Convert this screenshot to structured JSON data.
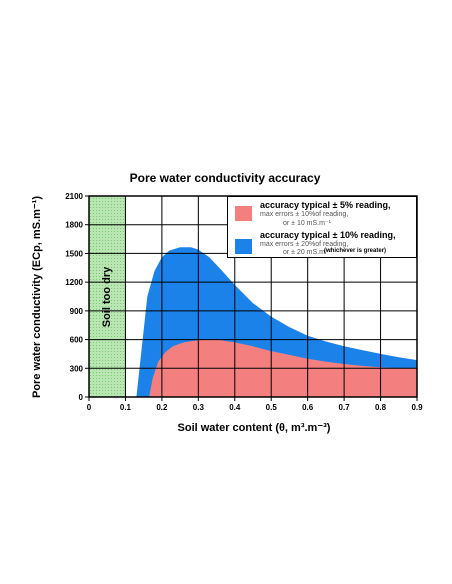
{
  "chart_data": {
    "type": "area",
    "title": "Pore water conductivity accuracy",
    "xlabel": "Soil water content (θ, m³.m⁻³)",
    "ylabel": "Pore water conductivity (ECp, mS.m⁻¹)",
    "xlim": [
      0,
      0.9
    ],
    "ylim": [
      0,
      2100
    ],
    "x_ticks": [
      "0",
      "0.1",
      "0.2",
      "0.3",
      "0.4",
      "0.5",
      "0.6",
      "0.7",
      "0.8",
      "0.9"
    ],
    "y_ticks": [
      "0",
      "300",
      "600",
      "900",
      "1200",
      "1500",
      "1800",
      "2100"
    ],
    "grid": true,
    "shaded_region": {
      "label": "Soil too dry",
      "x_range": [
        0,
        0.1
      ],
      "color": "#9fd89a"
    },
    "series": [
      {
        "name": "accuracy typical ± 10% reading",
        "color": "#1a82e8",
        "points": [
          [
            0.12,
            0
          ],
          [
            0.13,
            0
          ],
          [
            0.15,
            700
          ],
          [
            0.16,
            1050
          ],
          [
            0.18,
            1320
          ],
          [
            0.2,
            1460
          ],
          [
            0.22,
            1530
          ],
          [
            0.25,
            1565
          ],
          [
            0.28,
            1565
          ],
          [
            0.3,
            1540
          ],
          [
            0.33,
            1460
          ],
          [
            0.36,
            1340
          ],
          [
            0.4,
            1170
          ],
          [
            0.45,
            980
          ],
          [
            0.5,
            840
          ],
          [
            0.55,
            730
          ],
          [
            0.6,
            640
          ],
          [
            0.65,
            580
          ],
          [
            0.7,
            530
          ],
          [
            0.75,
            490
          ],
          [
            0.8,
            450
          ],
          [
            0.85,
            415
          ],
          [
            0.9,
            385
          ]
        ]
      },
      {
        "name": "accuracy typical ± 5% reading",
        "color": "#f47f7f",
        "points": [
          [
            0.165,
            0
          ],
          [
            0.175,
            200
          ],
          [
            0.19,
            370
          ],
          [
            0.21,
            470
          ],
          [
            0.23,
            530
          ],
          [
            0.26,
            570
          ],
          [
            0.3,
            595
          ],
          [
            0.33,
            600
          ],
          [
            0.36,
            595
          ],
          [
            0.4,
            570
          ],
          [
            0.45,
            530
          ],
          [
            0.5,
            480
          ],
          [
            0.55,
            440
          ],
          [
            0.6,
            400
          ],
          [
            0.65,
            370
          ],
          [
            0.7,
            345
          ],
          [
            0.75,
            325
          ],
          [
            0.8,
            310
          ],
          [
            0.85,
            302
          ],
          [
            0.9,
            300
          ]
        ]
      }
    ],
    "legend": {
      "placement": "top-right",
      "items": [
        {
          "title": "accuracy typical ± 5% reading,",
          "lines": [
            "max errors ± 10%of reading,",
            "or ± 10 mS.m⁻¹"
          ],
          "color": "#f47f7f"
        },
        {
          "title": "accuracy typical ± 10% reading,",
          "lines": [
            "max errors ± 20%of reading,",
            "or ± 20 mS.m⁻¹"
          ],
          "color": "#1a82e8"
        }
      ],
      "note": "(whichever is greater)"
    }
  }
}
